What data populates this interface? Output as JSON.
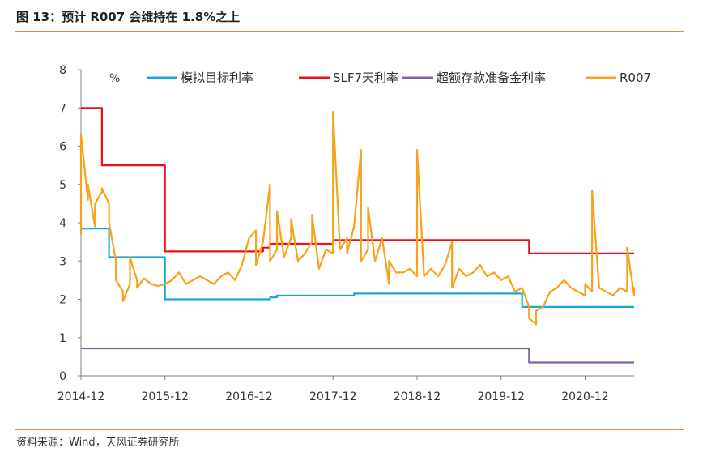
{
  "header": {
    "title": "图 13：预计 R007 会维持在 1.8%之上"
  },
  "footer": {
    "source": "资料来源：Wind，天风证券研究所"
  },
  "chart_data": {
    "type": "line",
    "unit_label": "%",
    "ylim": [
      0,
      8
    ],
    "yticks": [
      0,
      1,
      2,
      3,
      4,
      5,
      6,
      7,
      8
    ],
    "xlim": [
      "2014-12",
      "2021-07"
    ],
    "xticks": [
      "2014-12",
      "2015-12",
      "2016-12",
      "2017-12",
      "2018-12",
      "2019-12",
      "2020-12"
    ],
    "grid": false,
    "legend": "top",
    "series": [
      {
        "name": "模拟目标利率",
        "color": "#1aa7d8",
        "style": "step",
        "points": [
          [
            "2014-12",
            3.85
          ],
          [
            "2015-04",
            3.85
          ],
          [
            "2015-04",
            3.1
          ],
          [
            "2015-12",
            3.1
          ],
          [
            "2015-12",
            2.0
          ],
          [
            "2017-03",
            2.0
          ],
          [
            "2017-03",
            2.05
          ],
          [
            "2017-04",
            2.05
          ],
          [
            "2017-04",
            2.1
          ],
          [
            "2018-03",
            2.1
          ],
          [
            "2018-03",
            2.15
          ],
          [
            "2020-03",
            2.15
          ],
          [
            "2020-03",
            1.8
          ],
          [
            "2021-07",
            1.8
          ]
        ]
      },
      {
        "name": "SLF7天利率",
        "color": "#e8101e",
        "style": "step",
        "points": [
          [
            "2014-12",
            7.0
          ],
          [
            "2015-03",
            7.0
          ],
          [
            "2015-03",
            5.5
          ],
          [
            "2015-12",
            5.5
          ],
          [
            "2015-12",
            3.25
          ],
          [
            "2017-02",
            3.25
          ],
          [
            "2017-02",
            3.35
          ],
          [
            "2017-03",
            3.35
          ],
          [
            "2017-03",
            3.45
          ],
          [
            "2017-12",
            3.45
          ],
          [
            "2017-12",
            3.55
          ],
          [
            "2020-04",
            3.55
          ],
          [
            "2020-04",
            3.2
          ],
          [
            "2021-07",
            3.2
          ]
        ]
      },
      {
        "name": "超额存款准备金利率",
        "color": "#8064a2",
        "style": "step",
        "points": [
          [
            "2014-12",
            0.72
          ],
          [
            "2020-04",
            0.72
          ],
          [
            "2020-04",
            0.35
          ],
          [
            "2021-07",
            0.35
          ]
        ]
      },
      {
        "name": "R007",
        "color": "#f7a21b",
        "style": "line",
        "points": [
          [
            "2014-12",
            3.7
          ],
          [
            "2014-12",
            6.3
          ],
          [
            "2015-01",
            4.6
          ],
          [
            "2015-01",
            5.0
          ],
          [
            "2015-02",
            3.9
          ],
          [
            "2015-02",
            4.5
          ],
          [
            "2015-03",
            4.8
          ],
          [
            "2015-03",
            4.9
          ],
          [
            "2015-04",
            4.5
          ],
          [
            "2015-04",
            4.0
          ],
          [
            "2015-05",
            3.0
          ],
          [
            "2015-05",
            2.5
          ],
          [
            "2015-06",
            2.2
          ],
          [
            "2015-06",
            1.95
          ],
          [
            "2015-07",
            2.4
          ],
          [
            "2015-07",
            3.1
          ],
          [
            "2015-08",
            2.5
          ],
          [
            "2015-08",
            2.3
          ],
          [
            "2015-09",
            2.55
          ],
          [
            "2015-10",
            2.4
          ],
          [
            "2015-11",
            2.35
          ],
          [
            "2015-12",
            2.4
          ],
          [
            "2016-01",
            2.5
          ],
          [
            "2016-02",
            2.7
          ],
          [
            "2016-03",
            2.4
          ],
          [
            "2016-04",
            2.5
          ],
          [
            "2016-05",
            2.6
          ],
          [
            "2016-06",
            2.5
          ],
          [
            "2016-07",
            2.4
          ],
          [
            "2016-08",
            2.6
          ],
          [
            "2016-09",
            2.7
          ],
          [
            "2016-10",
            2.5
          ],
          [
            "2016-11",
            2.9
          ],
          [
            "2016-12",
            3.6
          ],
          [
            "2017-01",
            3.8
          ],
          [
            "2017-01",
            2.9
          ],
          [
            "2017-02",
            3.5
          ],
          [
            "2017-03",
            5.0
          ],
          [
            "2017-03",
            3.0
          ],
          [
            "2017-04",
            3.3
          ],
          [
            "2017-04",
            4.3
          ],
          [
            "2017-05",
            3.1
          ],
          [
            "2017-06",
            3.6
          ],
          [
            "2017-06",
            4.1
          ],
          [
            "2017-07",
            3.0
          ],
          [
            "2017-08",
            3.2
          ],
          [
            "2017-09",
            3.5
          ],
          [
            "2017-09",
            4.2
          ],
          [
            "2017-10",
            2.8
          ],
          [
            "2017-11",
            3.3
          ],
          [
            "2017-12",
            3.2
          ],
          [
            "2017-12",
            6.9
          ],
          [
            "2018-01",
            3.3
          ],
          [
            "2018-02",
            3.6
          ],
          [
            "2018-02",
            3.2
          ],
          [
            "2018-03",
            3.9
          ],
          [
            "2018-04",
            5.9
          ],
          [
            "2018-04",
            3.0
          ],
          [
            "2018-05",
            3.3
          ],
          [
            "2018-05",
            4.4
          ],
          [
            "2018-06",
            3.0
          ],
          [
            "2018-07",
            3.6
          ],
          [
            "2018-08",
            2.4
          ],
          [
            "2018-08",
            3.0
          ],
          [
            "2018-09",
            2.7
          ],
          [
            "2018-10",
            2.7
          ],
          [
            "2018-11",
            2.8
          ],
          [
            "2018-12",
            2.6
          ],
          [
            "2018-12",
            5.9
          ],
          [
            "2019-01",
            2.6
          ],
          [
            "2019-02",
            2.8
          ],
          [
            "2019-03",
            2.6
          ],
          [
            "2019-04",
            2.9
          ],
          [
            "2019-05",
            3.5
          ],
          [
            "2019-05",
            2.3
          ],
          [
            "2019-06",
            2.8
          ],
          [
            "2019-07",
            2.6
          ],
          [
            "2019-08",
            2.7
          ],
          [
            "2019-09",
            2.9
          ],
          [
            "2019-10",
            2.6
          ],
          [
            "2019-11",
            2.7
          ],
          [
            "2019-12",
            2.5
          ],
          [
            "2020-01",
            2.6
          ],
          [
            "2020-02",
            2.2
          ],
          [
            "2020-03",
            2.3
          ],
          [
            "2020-04",
            1.8
          ],
          [
            "2020-04",
            1.5
          ],
          [
            "2020-05",
            1.35
          ],
          [
            "2020-05",
            1.7
          ],
          [
            "2020-06",
            1.8
          ],
          [
            "2020-07",
            2.2
          ],
          [
            "2020-08",
            2.3
          ],
          [
            "2020-09",
            2.5
          ],
          [
            "2020-10",
            2.3
          ],
          [
            "2020-11",
            2.2
          ],
          [
            "2020-12",
            2.1
          ],
          [
            "2020-12",
            2.4
          ],
          [
            "2021-01",
            2.2
          ],
          [
            "2021-01",
            4.85
          ],
          [
            "2021-02",
            2.3
          ],
          [
            "2021-03",
            2.2
          ],
          [
            "2021-04",
            2.1
          ],
          [
            "2021-05",
            2.3
          ],
          [
            "2021-06",
            2.2
          ],
          [
            "2021-06",
            3.35
          ],
          [
            "2021-07",
            2.1
          ],
          [
            "2021-07",
            2.3
          ],
          [
            "2021-07",
            2.2
          ]
        ]
      }
    ]
  }
}
